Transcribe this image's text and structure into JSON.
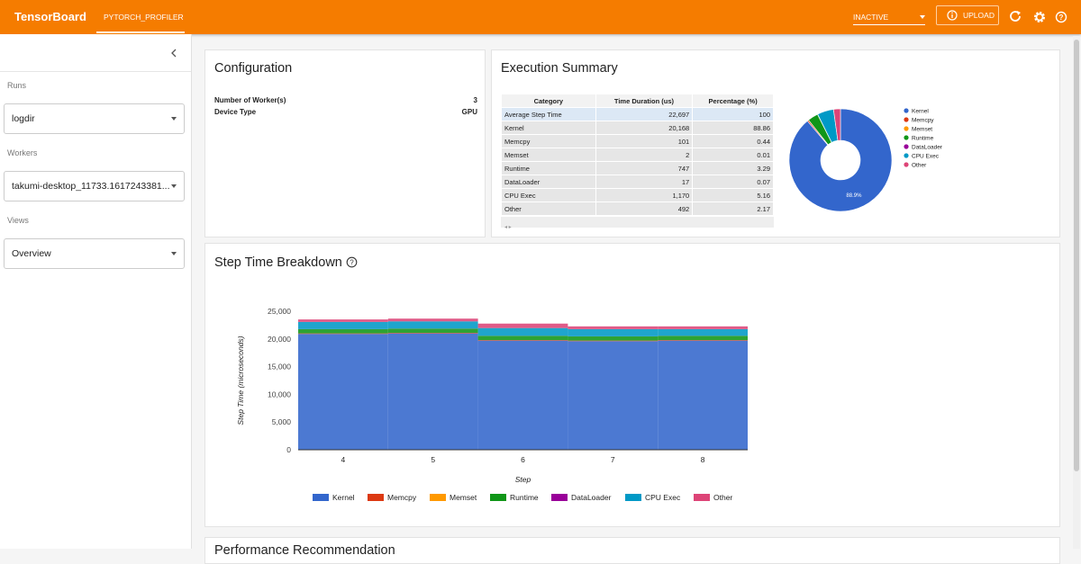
{
  "header": {
    "brand": "TensorBoard",
    "tab": "PYTORCH_PROFILER",
    "status": "INACTIVE",
    "upload": "UPLOAD"
  },
  "sidebar": {
    "runs_label": "Runs",
    "run": "logdir",
    "workers_label": "Workers",
    "worker": "takumi-desktop_11733.1617243381...",
    "views_label": "Views",
    "view": "Overview"
  },
  "configuration": {
    "title": "Configuration",
    "rows": [
      [
        "Number of Worker(s)",
        "3"
      ],
      [
        "Device Type",
        "GPU"
      ]
    ]
  },
  "execution_summary": {
    "title": "Execution Summary",
    "table": {
      "headers": [
        "Category",
        "Time Duration (us)",
        "Percentage (%)"
      ],
      "rows": [
        [
          "Average Step Time",
          "22,697",
          "100"
        ],
        [
          "Kernel",
          "20,168",
          "88.86"
        ],
        [
          "Memcpy",
          "101",
          "0.44"
        ],
        [
          "Memset",
          "2",
          "0.01"
        ],
        [
          "Runtime",
          "747",
          "3.29"
        ],
        [
          "DataLoader",
          "17",
          "0.07"
        ],
        [
          "CPU Exec",
          "1,170",
          "5.16"
        ],
        [
          "Other",
          "492",
          "2.17"
        ]
      ]
    }
  },
  "chart_data": [
    {
      "type": "pie",
      "categories": [
        "Kernel",
        "Memcpy",
        "Memset",
        "Runtime",
        "DataLoader",
        "CPU Exec",
        "Other"
      ],
      "values": [
        88.86,
        0.44,
        0.01,
        3.29,
        0.07,
        5.16,
        2.17
      ],
      "value_labels": [
        "88.9%",
        null,
        null,
        null,
        null,
        null,
        null
      ],
      "colors": [
        "#3366cc",
        "#dc3912",
        "#ff9900",
        "#109618",
        "#990099",
        "#0099c6",
        "#dd4477"
      ],
      "donut": true,
      "legend": "right"
    },
    {
      "type": "area",
      "title": "Step Time Breakdown",
      "xlabel": "Step",
      "ylabel": "Step Time (microseconds)",
      "stacked": true,
      "stepped": true,
      "categories": [
        "4",
        "5",
        "6",
        "7",
        "8"
      ],
      "series": [
        {
          "name": "Kernel",
          "color": "#3366cc",
          "values": [
            20900,
            21000,
            19700,
            19600,
            19700
          ]
        },
        {
          "name": "Memcpy",
          "color": "#dc3912",
          "values": [
            100,
            100,
            100,
            100,
            100
          ]
        },
        {
          "name": "Memset",
          "color": "#ff9900",
          "values": [
            2,
            2,
            2,
            2,
            2
          ]
        },
        {
          "name": "Runtime",
          "color": "#109618",
          "values": [
            750,
            750,
            750,
            750,
            750
          ]
        },
        {
          "name": "DataLoader",
          "color": "#990099",
          "values": [
            17,
            17,
            17,
            17,
            17
          ]
        },
        {
          "name": "CPU Exec",
          "color": "#0099c6",
          "values": [
            1300,
            1300,
            1400,
            1300,
            1200
          ]
        },
        {
          "name": "Other",
          "color": "#dd4477",
          "values": [
            450,
            500,
            800,
            500,
            500
          ]
        }
      ],
      "ylim": [
        0,
        25000
      ],
      "yticks": [
        0,
        {
          "value": 5000,
          "label": "5,000"
        },
        {
          "value": 10000,
          "label": "10,000"
        },
        {
          "value": 15000,
          "label": "15,000"
        },
        {
          "value": 20000,
          "label": "20,000"
        },
        {
          "value": 25000,
          "label": "25,000"
        }
      ],
      "grid": false,
      "legend": "bottom"
    }
  ],
  "footer_card": {
    "title": "Performance Recommendation"
  }
}
